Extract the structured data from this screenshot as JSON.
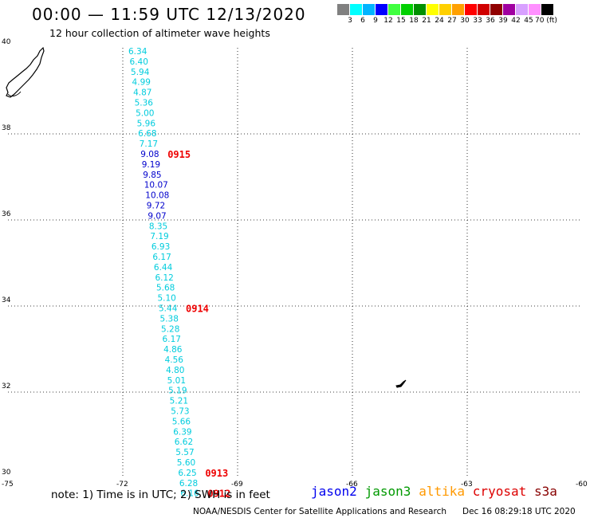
{
  "header": {
    "title": "00:00 — 11:59 UTC 12/13/2020",
    "subtitle": "12 hour collection of altimeter wave heights"
  },
  "colorbar": {
    "colors": [
      "#808080",
      "#00ffff",
      "#00b4ff",
      "#0000ff",
      "#40ff40",
      "#00d000",
      "#009000",
      "#ffff00",
      "#ffd000",
      "#ffa000",
      "#ff0000",
      "#d00000",
      "#900000",
      "#a000a0",
      "#d8a0ff",
      "#ff90ff",
      "#000000"
    ],
    "labels": [
      "3",
      "6",
      "9",
      "12",
      "15",
      "18",
      "21",
      "24",
      "27",
      "30",
      "33",
      "36",
      "39",
      "42",
      "45",
      "70 (ft)"
    ]
  },
  "axes": {
    "x_ticks": [
      "-75",
      "-72",
      "-69",
      "-66",
      "-63",
      "-60"
    ],
    "y_ticks": [
      "40",
      "38",
      "36",
      "34",
      "32",
      "30"
    ],
    "lon_range": [
      -75,
      -60
    ],
    "lat_range": [
      30,
      40
    ]
  },
  "track": {
    "values": [
      "6.34",
      "6.40",
      "5.94",
      "4.99",
      "4.87",
      "5.36",
      "5.00",
      "5.96",
      "6.68",
      "7.17",
      "9.08",
      "9.19",
      "9.85",
      "10.07",
      "10.08",
      "9.72",
      "9.07",
      "8.35",
      "7.19",
      "6.93",
      "6.17",
      "6.44",
      "6.12",
      "5.68",
      "5.10",
      "5.44",
      "5.38",
      "5.28",
      "6.17",
      "4.86",
      "4.56",
      "4.80",
      "5.01",
      "5.19",
      "5.21",
      "5.73",
      "5.66",
      "6.39",
      "6.62",
      "5.57",
      "5.60",
      "6.25",
      "6.28",
      "6.16"
    ],
    "colors": [
      "#00ccdd",
      "#00ccdd",
      "#00ccdd",
      "#00ccdd",
      "#00ccdd",
      "#00ccdd",
      "#00ccdd",
      "#00ccdd",
      "#00ccdd",
      "#00ccdd",
      "#0000cc",
      "#0000cc",
      "#0000cc",
      "#0000cc",
      "#0000cc",
      "#0000cc",
      "#0000cc",
      "#00ccdd",
      "#00ccdd",
      "#00ccdd",
      "#00ccdd",
      "#00ccdd",
      "#00ccdd",
      "#00ccdd",
      "#00ccdd",
      "#00ccdd",
      "#00ccdd",
      "#00ccdd",
      "#00ccdd",
      "#00ccdd",
      "#00ccdd",
      "#00ccdd",
      "#00ccdd",
      "#00ccdd",
      "#00ccdd",
      "#00ccdd",
      "#00ccdd",
      "#00ccdd",
      "#00ccdd",
      "#00ccdd",
      "#00ccdd",
      "#00ccdd",
      "#00ccdd",
      "#00ccdd"
    ]
  },
  "times": [
    "0915",
    "0914",
    "0913",
    "0912"
  ],
  "time_color": "#ee0000",
  "note": "note: 1) Time is in UTC; 2) SWH is in feet",
  "satellites": [
    {
      "name": "jason2",
      "color": "#0000ee"
    },
    {
      "name": "jason3",
      "color": "#009900"
    },
    {
      "name": "altika",
      "color": "#ff9900"
    },
    {
      "name": "cryosat",
      "color": "#dd0000"
    },
    {
      "name": "s3a",
      "color": "#880000"
    }
  ],
  "credit": "NOAA/NESDIS Center for Satellite Applications and Research",
  "timestamp": "Dec 16 08:29:18 UTC 2020"
}
